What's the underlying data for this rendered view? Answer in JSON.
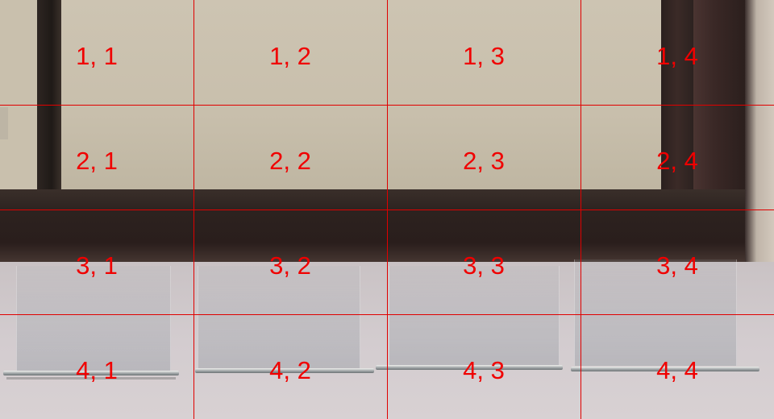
{
  "image": {
    "description_free": true,
    "grid": {
      "rows": 4,
      "cols": 4,
      "line_color": "#e00000",
      "label_color": "#f00000",
      "labels": [
        [
          "1, 1",
          "1, 2",
          "1, 3",
          "1, 4"
        ],
        [
          "2, 1",
          "2, 2",
          "2, 3",
          "2, 4"
        ],
        [
          "3, 1",
          "3, 2",
          "3, 3",
          "3, 4"
        ],
        [
          "4, 1",
          "4, 2",
          "4, 3",
          "4, 4"
        ]
      ]
    }
  }
}
